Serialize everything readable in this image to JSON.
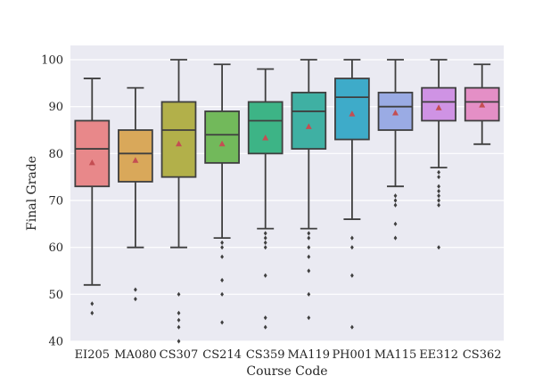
{
  "chart_data": {
    "type": "box",
    "title": "",
    "xlabel": "Course Code",
    "ylabel": "Final Grade",
    "ylim": [
      40,
      102
    ],
    "yticks": [
      40,
      50,
      60,
      70,
      80,
      90,
      100
    ],
    "grid": true,
    "mean_marker": "triangle",
    "categories": [
      "EI205",
      "MA080",
      "CS307",
      "CS214",
      "CS359",
      "MA119",
      "PH001",
      "MA115",
      "EE312",
      "CS362"
    ],
    "boxes": [
      {
        "label": "EI205",
        "color": "#e8888a",
        "whislo": 52,
        "q1": 73,
        "median": 81,
        "q3": 87,
        "whishi": 96,
        "mean": 78,
        "fliers": [
          48,
          46
        ]
      },
      {
        "label": "MA080",
        "color": "#d9a85a",
        "whislo": 60,
        "q1": 74,
        "median": 80,
        "q3": 85,
        "whishi": 94,
        "mean": 78.5,
        "fliers": [
          51,
          49
        ]
      },
      {
        "label": "CS307",
        "color": "#b2b04a",
        "whislo": 60,
        "q1": 75,
        "median": 85,
        "q3": 91,
        "whishi": 100,
        "mean": 82,
        "fliers": [
          50,
          46,
          44.5,
          43,
          40
        ]
      },
      {
        "label": "CS214",
        "color": "#72b95b",
        "whislo": 62,
        "q1": 78,
        "median": 84,
        "q3": 89,
        "whishi": 99,
        "mean": 82,
        "fliers": [
          61,
          60,
          58,
          53,
          50,
          44
        ]
      },
      {
        "label": "CS359",
        "color": "#3db486",
        "whislo": 64,
        "q1": 80,
        "median": 87,
        "q3": 91,
        "whishi": 98,
        "mean": 83.3,
        "fliers": [
          63,
          62,
          61,
          60,
          54,
          45,
          43
        ]
      },
      {
        "label": "MA119",
        "color": "#3fb0a3",
        "whislo": 64,
        "q1": 81,
        "median": 89,
        "q3": 93,
        "whishi": 100,
        "mean": 85.7,
        "fliers": [
          63,
          62,
          60,
          58,
          55,
          50,
          45
        ]
      },
      {
        "label": "PH001",
        "color": "#3eabc9",
        "whislo": 66,
        "q1": 83,
        "median": 92,
        "q3": 96,
        "whishi": 100,
        "mean": 88.4,
        "fliers": [
          62,
          60,
          54,
          43
        ]
      },
      {
        "label": "MA115",
        "color": "#9aabe4",
        "whislo": 73,
        "q1": 85,
        "median": 90,
        "q3": 93,
        "whishi": 100,
        "mean": 88.6,
        "fliers": [
          71,
          70,
          69,
          65,
          62
        ]
      },
      {
        "label": "EE312",
        "color": "#cf93e4",
        "whislo": 77,
        "q1": 87,
        "median": 91,
        "q3": 94,
        "whishi": 100,
        "mean": 89.7,
        "fliers": [
          76,
          75,
          73,
          72,
          71,
          70,
          69,
          60
        ]
      },
      {
        "label": "CS362",
        "color": "#e48fc6",
        "whislo": 82,
        "q1": 87,
        "median": 91,
        "q3": 94,
        "whishi": 99,
        "mean": 90.3,
        "fliers": []
      }
    ]
  }
}
